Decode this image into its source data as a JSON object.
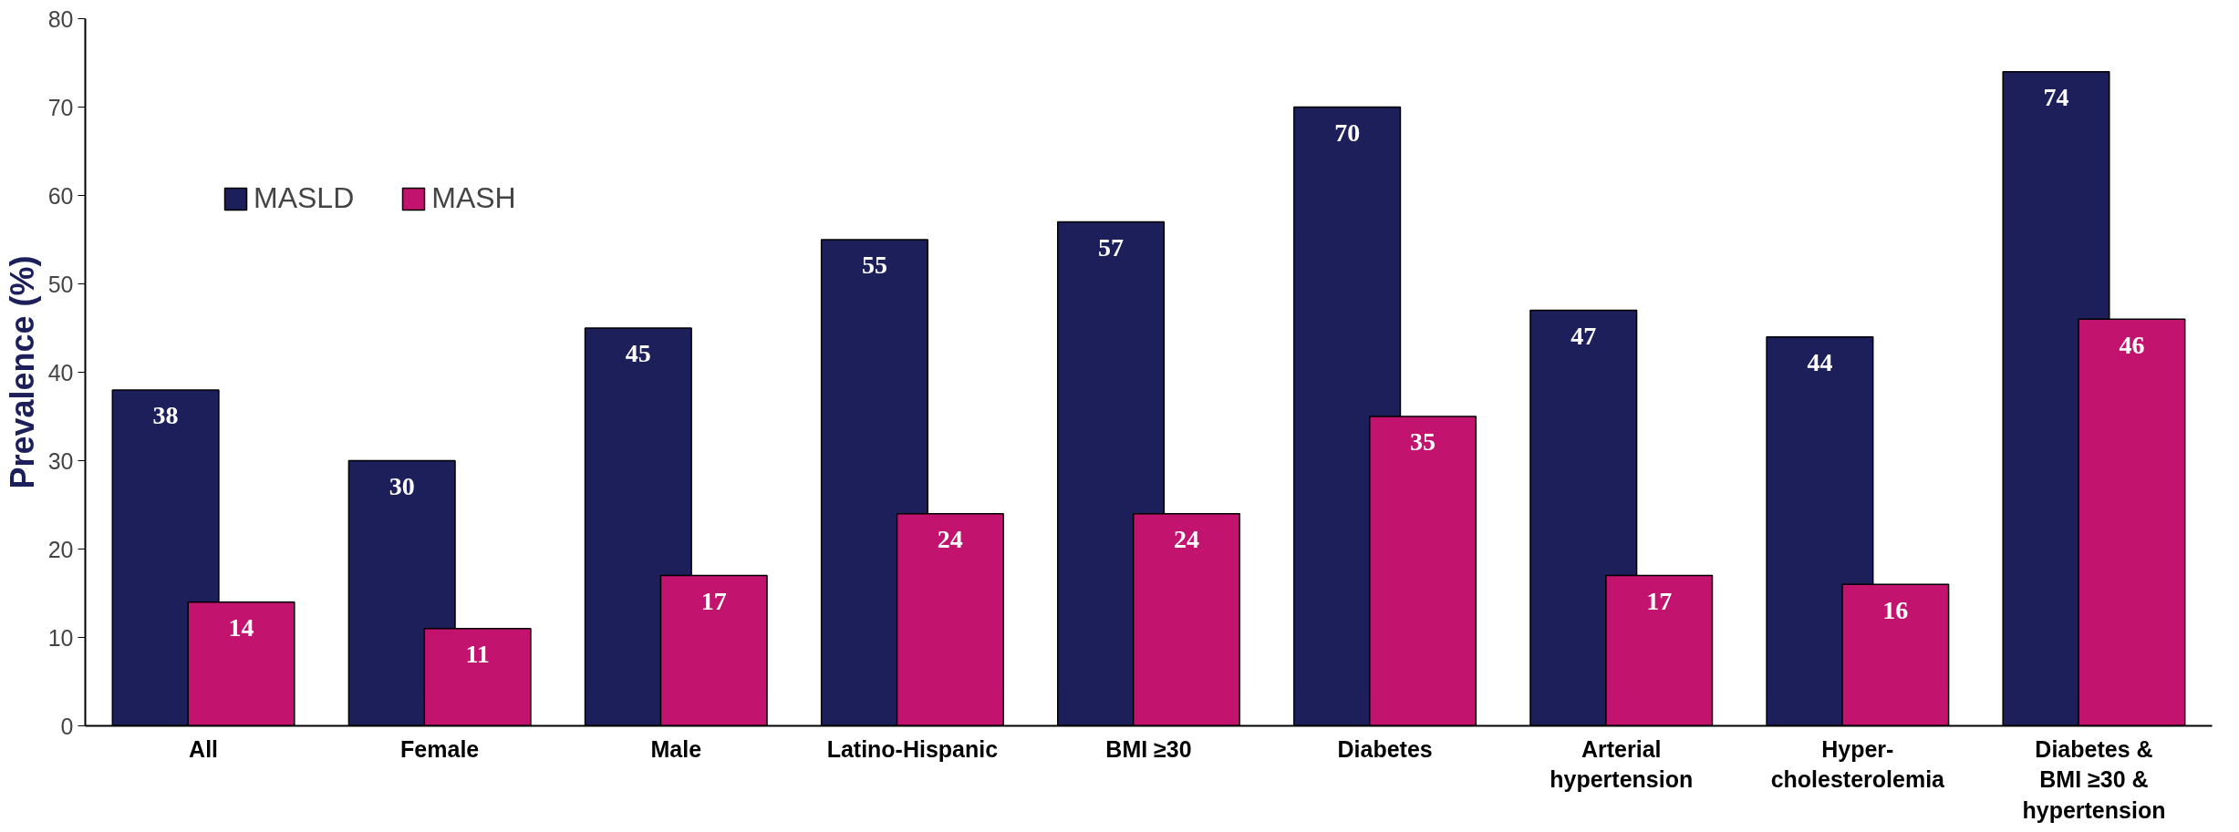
{
  "chart_data": {
    "type": "bar",
    "ylabel": "Prevalence (%)",
    "categories": [
      "All",
      "Female",
      "Male",
      "Latino-Hispanic",
      "BMI ≥30",
      "Diabetes",
      "Arterial\nhypertension",
      "Hyper-\ncholesterolemia",
      "Diabetes &\nBMI ≥30 &\nhypertension"
    ],
    "series": [
      {
        "name": "MASLD",
        "color": "#1c1f5a",
        "values": [
          38,
          30,
          45,
          55,
          57,
          70,
          47,
          44,
          74
        ]
      },
      {
        "name": "MASH",
        "color": "#c2136f",
        "values": [
          14,
          11,
          17,
          24,
          24,
          35,
          17,
          16,
          46
        ]
      }
    ],
    "ylim": [
      0,
      80
    ],
    "yticks": [
      0,
      10,
      20,
      30,
      40,
      50,
      60,
      70,
      80
    ],
    "data_labels": true,
    "legend": "top left",
    "grid": false
  }
}
